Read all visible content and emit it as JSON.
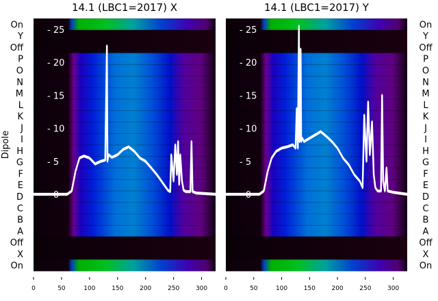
{
  "chart_data": [
    {
      "type": "heatmap",
      "title": "14.1 (LBC1=2017) X",
      "ylabel": "Dipole",
      "row_labels": [
        "On",
        "Y",
        "Off",
        "P",
        "O",
        "N",
        "M",
        "L",
        "K",
        "J",
        "I",
        "H",
        "G",
        "F",
        "E",
        "D",
        "C",
        "B",
        "A",
        "Off",
        "X",
        "On"
      ],
      "xticks": [
        0,
        50,
        100,
        150,
        200,
        250,
        300
      ],
      "xlim": [
        0,
        325
      ],
      "overlay_yticks": [
        0,
        5,
        10,
        15,
        20,
        25
      ],
      "overlay_ylim": [
        -0.5,
        27
      ],
      "overlay_line": {
        "x": [
          0,
          60,
          68,
          75,
          82,
          90,
          100,
          110,
          120,
          128,
          131,
          132,
          134,
          140,
          150,
          160,
          170,
          180,
          190,
          200,
          210,
          220,
          230,
          240,
          244,
          246,
          250,
          253,
          256,
          258,
          260,
          262,
          265,
          268,
          272,
          280,
          282,
          284,
          290,
          325
        ],
        "y": [
          0,
          0,
          0.5,
          3.5,
          5.5,
          5.8,
          5.5,
          4.6,
          5,
          5.2,
          22.5,
          5,
          6,
          5.6,
          6,
          6.8,
          7.2,
          6.5,
          5.5,
          5,
          4,
          3,
          1.8,
          0.6,
          0.4,
          6,
          2,
          7.5,
          3,
          8,
          1.5,
          6,
          2,
          0.6,
          0.4,
          0.4,
          8,
          0.4,
          0.2,
          0
        ]
      },
      "colormap": "nipy_spectral"
    },
    {
      "type": "heatmap",
      "title": "14.1 (LBC1=2017) Y",
      "row_labels": [
        "On",
        "Y",
        "Off",
        "P",
        "O",
        "N",
        "M",
        "L",
        "K",
        "J",
        "I",
        "H",
        "G",
        "F",
        "E",
        "D",
        "C",
        "B",
        "A",
        "Off",
        "X",
        "On"
      ],
      "xticks": [
        0,
        50,
        100,
        150,
        200,
        250,
        300
      ],
      "xlim": [
        0,
        325
      ],
      "overlay_yticks": [
        0,
        5,
        10,
        15,
        20,
        25
      ],
      "overlay_ylim": [
        -0.5,
        27
      ],
      "overlay_line": {
        "x": [
          0,
          60,
          68,
          75,
          82,
          90,
          100,
          110,
          120,
          125,
          127,
          129,
          131,
          132,
          134,
          135,
          137,
          140,
          150,
          160,
          170,
          180,
          190,
          200,
          210,
          220,
          230,
          240,
          245,
          248,
          252,
          255,
          258,
          262,
          265,
          268,
          272,
          278,
          280,
          282,
          285,
          288,
          290,
          300,
          325
        ],
        "y": [
          0,
          0,
          0.5,
          3.5,
          5.5,
          6.5,
          7,
          7.2,
          7.5,
          7,
          13,
          7,
          25.5,
          8,
          22,
          8,
          8.5,
          8,
          8.5,
          9,
          9.5,
          8.8,
          8,
          7,
          5.5,
          4.5,
          3,
          2,
          1,
          12,
          5,
          14,
          6,
          11,
          3,
          1,
          0.5,
          0.5,
          15,
          2,
          0.5,
          4,
          0.5,
          0.3,
          0
        ]
      },
      "colormap": "nipy_spectral"
    }
  ]
}
